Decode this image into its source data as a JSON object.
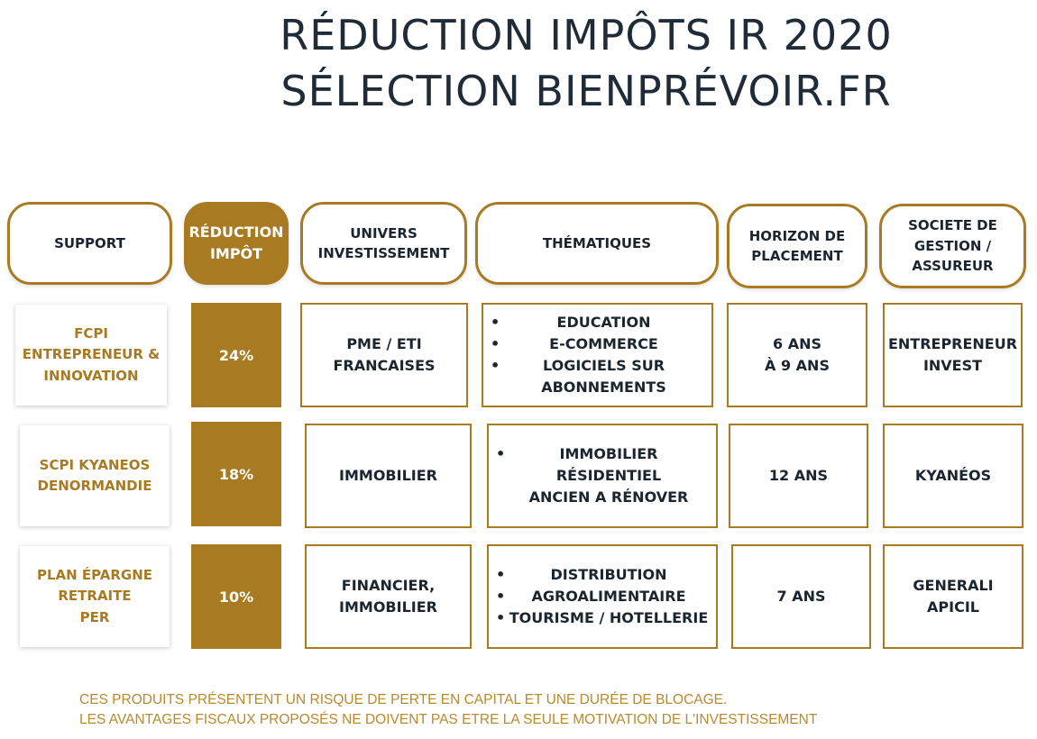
{
  "title": {
    "line1": "RÉDUCTION IMPÔTS IR 2020",
    "line2": "SÉLECTION BIENPRÉVOIR.FR"
  },
  "headers": {
    "support": [
      "SUPPORT"
    ],
    "reduction": [
      "RÉDUCTION",
      "IMPÔT"
    ],
    "univers": [
      "UNIVERS",
      "INVESTISSEMENT"
    ],
    "thematiques": [
      "THÉMATIQUES"
    ],
    "horizon": [
      "HORIZON DE",
      "PLACEMENT"
    ],
    "societe": [
      "SOCIETE DE",
      "GESTION /",
      "ASSUREUR"
    ]
  },
  "rows": [
    {
      "support": [
        "FCPI",
        "ENTREPRENEUR &",
        "INNOVATION"
      ],
      "reduction": "24%",
      "univers": [
        "PME / ETI",
        "FRANCAISES"
      ],
      "bullet": "•",
      "thematiques": [
        [
          "EDUCATION"
        ],
        [
          "E-COMMERCE"
        ],
        [
          "LOGICIELS SUR",
          "ABONNEMENTS"
        ]
      ],
      "horizon": [
        "6 ANS",
        "À 9 ANS"
      ],
      "societe": [
        "ENTREPRENEUR",
        "INVEST"
      ]
    },
    {
      "support": [
        "SCPI KYANEOS",
        "DENORMANDIE"
      ],
      "reduction": "18%",
      "univers": [
        "IMMOBILIER"
      ],
      "bullet": "•",
      "thematiques": [
        [
          "IMMOBILIER RÉSIDENTIEL",
          "ANCIEN A RÉNOVER"
        ]
      ],
      "horizon": [
        "12 ANS"
      ],
      "societe": [
        "KYANÉOS"
      ]
    },
    {
      "support": [
        "PLAN ÉPARGNE",
        "RETRAITE",
        "PER"
      ],
      "reduction": "10%",
      "univers": [
        "FINANCIER,",
        "IMMOBILIER"
      ],
      "bullet": "•",
      "thematiques": [
        [
          "DISTRIBUTION"
        ],
        [
          "AGROALIMENTAIRE"
        ],
        [
          "TOURISME / HOTELLERIE"
        ]
      ],
      "horizon": [
        "7 ANS"
      ],
      "societe": [
        "GENERALI",
        "APICIL"
      ]
    }
  ],
  "disclaimer": {
    "line1": "CES PRODUITS PRÉSENTENT UN RISQUE DE PERTE EN CAPITAL ET UNE DURÉE DE BLOCAGE.",
    "line2": "LES AVANTAGES FISCAUX PROPOSÉS NE DOIVENT PAS ETRE LA SEULE MOTIVATION DE L'INVESTISSEMENT"
  },
  "colors": {
    "gold": "#a87b22",
    "title": "#1f2b36",
    "disclaimer": "#b88a2e"
  }
}
